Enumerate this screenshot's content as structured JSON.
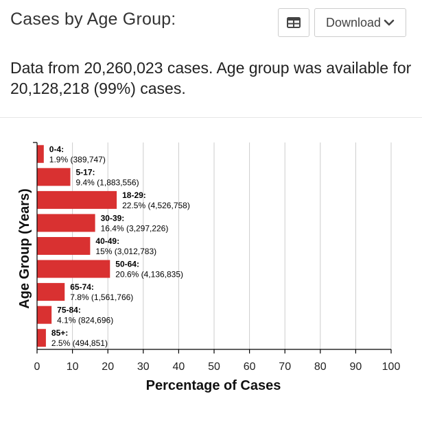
{
  "header": {
    "title": "Cases by Age Group:",
    "table_icon": "table-icon",
    "download_label": "Download",
    "download_icon": "chevron-down-icon"
  },
  "description": "Data from 20,260,023 cases. Age group was available for 20,128,218 (99%) cases.",
  "colors": {
    "bar": "#d93131",
    "grid": "#cccccc",
    "axis": "#000000"
  },
  "chart_data": {
    "type": "bar",
    "orientation": "horizontal",
    "xlabel": "Percentage of Cases",
    "ylabel": "Age Group (Years)",
    "xlim": [
      0,
      100
    ],
    "xticks": [
      0,
      10,
      20,
      30,
      40,
      50,
      60,
      70,
      80,
      90,
      100
    ],
    "grid": true,
    "categories": [
      "0-4:",
      "5-17:",
      "18-29:",
      "30-39:",
      "40-49:",
      "50-64:",
      "65-74:",
      "75-84:",
      "85+:"
    ],
    "values": [
      1.9,
      9.4,
      22.5,
      16.4,
      15,
      20.6,
      7.8,
      4.1,
      2.5
    ],
    "value_labels": [
      "1.9% (389,747)",
      "9.4% (1,883,556)",
      "22.5% (4,526,758)",
      "16.4% (3,297,226)",
      "15% (3,012,783)",
      "20.6% (4,136,835)",
      "7.8% (1,561,766)",
      "4.1% (824,696)",
      "2.5% (494,851)"
    ]
  }
}
